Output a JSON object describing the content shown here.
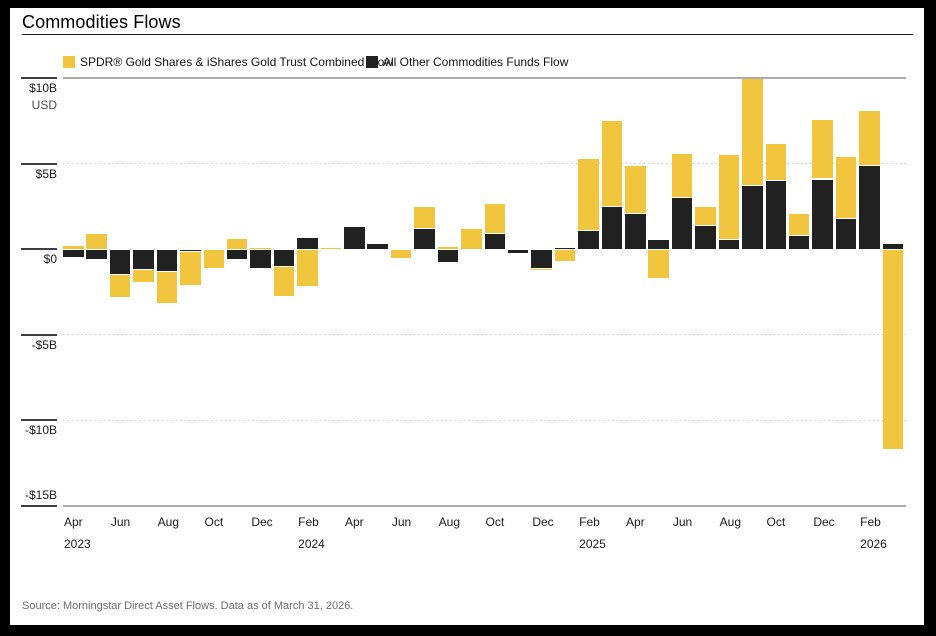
{
  "title": "Commodities Flows",
  "legend": [
    {
      "label": "SPDR® Gold Shares & iShares Gold Trust Combined Flow",
      "color": "#F2C53F"
    },
    {
      "label": "All Other Commodities Funds Flow",
      "color": "#212121"
    }
  ],
  "source": "Source: Morningstar Direct Asset Flows. Data as of March 31, 2026.",
  "chart_data": {
    "type": "bar",
    "stacked": true,
    "title": "Commodities Flows",
    "unit": "USD billions",
    "ylim": [
      -15,
      10
    ],
    "y_axis": {
      "sublabel": "USD",
      "ticks": [
        {
          "label": "$10B",
          "value": 10
        },
        {
          "label": "$5B",
          "value": 5
        },
        {
          "label": "$0",
          "value": 0
        },
        {
          "label": "-$5B",
          "value": -5
        },
        {
          "label": "-$10B",
          "value": -10
        },
        {
          "label": "-$15B",
          "value": -15
        }
      ],
      "solid_gridlines": [
        10,
        -15
      ],
      "dotted_gridlines": [
        5,
        -5,
        -10
      ]
    },
    "categories": [
      "Apr 2023",
      "May 2023",
      "Jun 2023",
      "Jul 2023",
      "Aug 2023",
      "Sep 2023",
      "Oct 2023",
      "Nov 2023",
      "Dec 2023",
      "Jan 2024",
      "Feb 2024",
      "Mar 2024",
      "Apr 2024",
      "May 2024",
      "Jun 2024",
      "Jul 2024",
      "Aug 2024",
      "Sep 2024",
      "Oct 2024",
      "Nov 2024",
      "Dec 2024",
      "Jan 2025",
      "Feb 2025",
      "Mar 2025",
      "Apr 2025",
      "May 2025",
      "Jun 2025",
      "Jul 2025",
      "Aug 2025",
      "Sep 2025",
      "Oct 2025",
      "Nov 2025",
      "Dec 2025",
      "Jan 2026",
      "Feb 2026",
      "Mar 2026"
    ],
    "x_ticks": [
      {
        "i": 0,
        "month": "Apr",
        "year": "2023"
      },
      {
        "i": 2,
        "month": "Jun"
      },
      {
        "i": 4,
        "month": "Aug"
      },
      {
        "i": 6,
        "month": "Oct"
      },
      {
        "i": 8,
        "month": "Dec"
      },
      {
        "i": 10,
        "month": "Feb",
        "year": "2024"
      },
      {
        "i": 12,
        "month": "Apr"
      },
      {
        "i": 14,
        "month": "Jun"
      },
      {
        "i": 16,
        "month": "Aug"
      },
      {
        "i": 18,
        "month": "Oct"
      },
      {
        "i": 20,
        "month": "Dec"
      },
      {
        "i": 22,
        "month": "Feb",
        "year": "2025"
      },
      {
        "i": 24,
        "month": "Apr"
      },
      {
        "i": 26,
        "month": "Jun"
      },
      {
        "i": 28,
        "month": "Aug"
      },
      {
        "i": 30,
        "month": "Oct"
      },
      {
        "i": 32,
        "month": "Dec"
      },
      {
        "i": 34,
        "month": "Feb",
        "year": "2026"
      }
    ],
    "series": [
      {
        "name": "SPDR® Gold Shares & iShares Gold Trust Combined Flow",
        "color": "#F2C53F",
        "values": [
          0.2,
          0.9,
          -1.35,
          -0.75,
          -1.85,
          -1.95,
          -1.15,
          0.6,
          0.1,
          -1.75,
          -2.2,
          0.1,
          0,
          0,
          -0.55,
          1.3,
          0.15,
          1.2,
          1.75,
          0,
          -0.15,
          -0.7,
          4.2,
          5.0,
          2.8,
          -1.7,
          2.6,
          1.1,
          5.0,
          6.3,
          2.2,
          1.3,
          3.5,
          3.6,
          3.2,
          -11.7
        ]
      },
      {
        "name": "All Other Commodities Funds Flow",
        "color": "#212121",
        "values": [
          -0.5,
          -0.6,
          -1.5,
          -1.2,
          -1.3,
          -0.15,
          0,
          -0.6,
          -1.1,
          -1.0,
          0.7,
          0,
          1.3,
          0.35,
          0,
          1.2,
          -0.8,
          0,
          0.9,
          -0.25,
          -1.1,
          0.1,
          1.1,
          2.5,
          2.1,
          0.55,
          3.0,
          1.4,
          0.55,
          3.7,
          4.0,
          0.8,
          4.1,
          1.8,
          4.9,
          0.35
        ]
      }
    ],
    "stack_order_series_indexes": [
      1,
      0
    ],
    "legend_position": "top"
  }
}
